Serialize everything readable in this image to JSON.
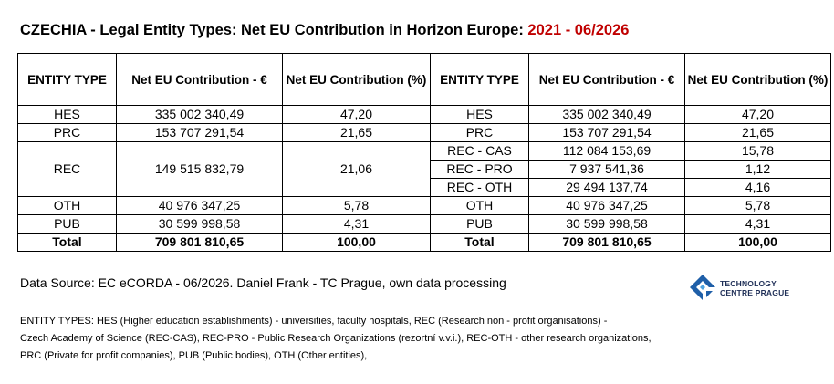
{
  "title": {
    "main": "CZECHIA - Legal Entity Types: Net EU Contribution in Horizon Europe: ",
    "period": "2021 - 06/2026"
  },
  "table": {
    "headers": [
      "ENTITY TYPE",
      "Net EU Contribution - €",
      "Net EU Contribution (%)",
      "ENTITY TYPE",
      "Net EU Contribution - €",
      "Net EU Contribution (%)"
    ],
    "left": [
      {
        "type": "HES",
        "value": "335 002 340,49",
        "pct": "47,20"
      },
      {
        "type": "PRC",
        "value": "153 707 291,54",
        "pct": "21,65"
      },
      {
        "type": "REC",
        "value": "149 515 832,79",
        "pct": "21,06"
      },
      {
        "type": "OTH",
        "value": "40 976 347,25",
        "pct": "5,78"
      },
      {
        "type": "PUB",
        "value": "30 599 998,58",
        "pct": "4,31"
      },
      {
        "type": "Total",
        "value": "709 801 810,65",
        "pct": "100,00"
      }
    ],
    "right": [
      {
        "type": "HES",
        "value": "335 002 340,49",
        "pct": "47,20"
      },
      {
        "type": "PRC",
        "value": "153 707 291,54",
        "pct": "21,65"
      },
      {
        "type": "REC - CAS",
        "value": "112 084 153,69",
        "pct": "15,78"
      },
      {
        "type": "REC - PRO",
        "value": "7 937 541,36",
        "pct": "1,12"
      },
      {
        "type": "REC - OTH",
        "value": "29 494 137,74",
        "pct": "4,16"
      },
      {
        "type": "OTH",
        "value": "40 976 347,25",
        "pct": "5,78"
      },
      {
        "type": "PUB",
        "value": "30 599 998,58",
        "pct": "4,31"
      },
      {
        "type": "Total",
        "value": "709 801 810,65",
        "pct": "100,00"
      }
    ]
  },
  "source": "Data Source: EC eCORDA - 06/2026. Daniel Frank - TC Prague, own data processing",
  "logo": {
    "line1": "TECHNOLOGY",
    "line2": "CENTRE PRAGUE",
    "icon": "tc-prague-logo-icon",
    "color": "#1f5fa8"
  },
  "notes": [
    "ENTITY TYPES: HES (Higher education establishments) - universities, faculty hospitals, REC (Research non - profit organisations) -",
    "Czech Academy of Science (REC-CAS), REC-PRO - Public Research Organizations (rezortní v.v.i.), REC-OTH - other research organizations,",
    "PRC (Private for profit companies), PUB (Public bodies), OTH (Other entities),"
  ]
}
